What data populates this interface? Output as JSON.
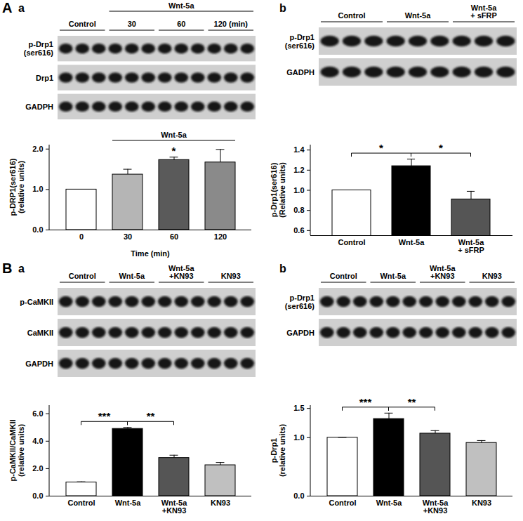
{
  "chart_data": [
    {
      "panel": "A",
      "subpanel": "a",
      "type": "bar",
      "blot": {
        "groups": [
          {
            "label": "Control",
            "lanes": 3
          },
          {
            "label": "30",
            "lanes": 3
          },
          {
            "label": "60",
            "lanes": 3
          },
          {
            "label": "120 (min)",
            "lanes": 3
          }
        ],
        "header": {
          "text": "Wnt-5a",
          "groups": [
            "30",
            "60",
            "120 (min)"
          ]
        },
        "rows": [
          "p-Drp1\n(ser616)",
          "Drp1",
          "GADPH"
        ]
      },
      "categories": [
        "0",
        "30",
        "60",
        "120"
      ],
      "values": [
        1.0,
        1.37,
        1.73,
        1.67
      ],
      "errors": [
        0,
        0.13,
        0.07,
        0.32
      ],
      "colors": [
        "#ffffff",
        "#b5b5b5",
        "#5a5a5a",
        "#8a8a8a"
      ],
      "ylim": [
        0,
        2.1
      ],
      "yticks": [
        {
          "value": 0,
          "label": "0.0"
        },
        {
          "value": 1,
          "label": "1.0"
        },
        {
          "value": 2,
          "label": "2.0"
        }
      ],
      "y_label": "p-DRP1(ser616)\n(relative units)",
      "x_label": "Time (min)",
      "annotations": [
        {
          "kind": "line",
          "text": "Wnt-5a",
          "from": "30",
          "to": "120"
        },
        {
          "kind": "mark",
          "text": "*",
          "at": "60"
        }
      ]
    },
    {
      "panel": "A",
      "subpanel": "b",
      "type": "bar",
      "blot": {
        "groups": [
          {
            "label": "Control",
            "lanes": 3
          },
          {
            "label": "Wnt-5a",
            "lanes": 3
          },
          {
            "label": "Wnt-5a\n+ sFRP",
            "lanes": 3
          }
        ],
        "rows": [
          "p-Drp1\n(ser616)",
          "GADPH"
        ]
      },
      "categories": [
        "Control",
        "Wnt-5a",
        "Wnt-5a\n+ sFRP"
      ],
      "values": [
        1.0,
        1.24,
        0.91
      ],
      "errors": [
        0,
        0.07,
        0.08
      ],
      "colors": [
        "#ffffff",
        "#000000",
        "#555555"
      ],
      "ylim": [
        0.55,
        1.45
      ],
      "yticks": [
        0.6,
        0.8,
        {
          "value": 1,
          "label": "1.0"
        },
        1.2,
        1.4
      ],
      "y_label": "p-Drp1(ser616)\n(Relative units)",
      "annotations": [
        {
          "kind": "bracket",
          "text": "*",
          "from": "Control",
          "to": "Wnt-5a"
        },
        {
          "kind": "bracket",
          "text": "*",
          "from": "Wnt-5a",
          "to": "Wnt-5a\n+ sFRP"
        }
      ]
    },
    {
      "panel": "B",
      "subpanel": "a",
      "type": "bar",
      "blot": {
        "groups": [
          {
            "label": "Control",
            "lanes": 3
          },
          {
            "label": "Wnt-5a",
            "lanes": 3
          },
          {
            "label": "Wnt-5a\n+KN93",
            "lanes": 3
          },
          {
            "label": "KN93",
            "lanes": 3
          }
        ],
        "rows": [
          "p-CaMKII",
          "CaMKII",
          "GAPDH"
        ]
      },
      "categories": [
        "Control",
        "Wnt-5a",
        "Wnt-5a\n+KN93",
        "KN93"
      ],
      "values": [
        1.0,
        4.9,
        2.78,
        2.25
      ],
      "errors": [
        0.04,
        0.1,
        0.2,
        0.2
      ],
      "colors": [
        "#ffffff",
        "#000000",
        "#555555",
        "#c0c0c0"
      ],
      "ylim": [
        0,
        6.6
      ],
      "yticks": [
        {
          "value": 0,
          "label": "0.0"
        },
        {
          "value": 2,
          "label": "2.0"
        },
        {
          "value": 4,
          "label": "4.0"
        },
        {
          "value": 6,
          "label": "6.0"
        }
      ],
      "y_label": "p-CaMKII/CaMKII\n(relative units)",
      "annotations": [
        {
          "kind": "bracket",
          "text": "***",
          "from": "Control",
          "to": "Wnt-5a"
        },
        {
          "kind": "bracket",
          "text": "**",
          "from": "Wnt-5a",
          "to": "Wnt-5a\n+KN93"
        }
      ]
    },
    {
      "panel": "B",
      "subpanel": "b",
      "type": "bar",
      "blot": {
        "groups": [
          {
            "label": "Control",
            "lanes": 3
          },
          {
            "label": "Wnt-5a",
            "lanes": 3
          },
          {
            "label": "Wnt-5a\n+KN93",
            "lanes": 3
          },
          {
            "label": "KN93",
            "lanes": 3
          }
        ],
        "rows": [
          "p-Drp1\n(ser616)",
          "GAPDH"
        ]
      },
      "categories": [
        "Control",
        "Wnt-5a",
        "Wnt-5a\n+KN93",
        "KN93"
      ],
      "values": [
        1.0,
        1.32,
        1.07,
        0.91
      ],
      "errors": [
        0.005,
        0.1,
        0.05,
        0.04
      ],
      "colors": [
        "#ffffff",
        "#000000",
        "#555555",
        "#c0c0c0"
      ],
      "ylim": [
        0,
        1.55
      ],
      "yticks": [
        {
          "value": 0,
          "label": "0.0"
        },
        {
          "value": 1,
          "label": "1.0"
        },
        {
          "value": 1.5,
          "label": "1.5"
        }
      ],
      "y_label": "p-Drp1\n(relative units)",
      "annotations": [
        {
          "kind": "bracket",
          "text": "***",
          "from": "Control",
          "to": "Wnt-5a"
        },
        {
          "kind": "bracket",
          "text": "**",
          "from": "Wnt-5a",
          "to": "Wnt-5a\n+KN93"
        }
      ]
    }
  ]
}
